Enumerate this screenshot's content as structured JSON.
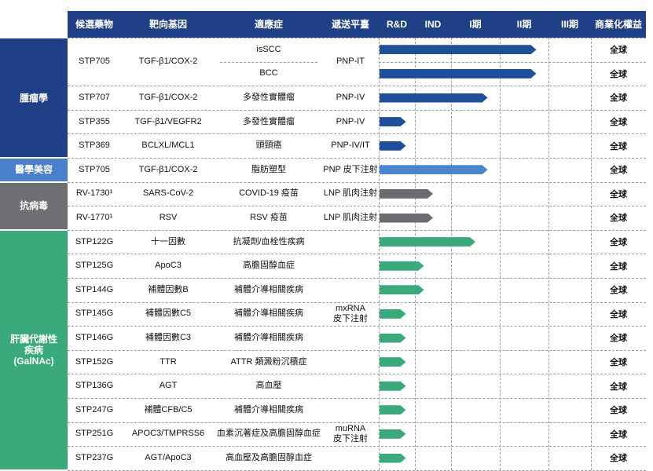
{
  "colors": {
    "header_bg": "#1f3f86",
    "oncology": "#1f3f86",
    "aesthetic": "#4a7fc9",
    "antiviral": "#6e6f72",
    "liver": "#3aaa7c",
    "bar_oncology": "#1f4e9a",
    "bar_aesthetic": "#4a85cf",
    "bar_antiviral": "#6b6c6f",
    "bar_liver": "#3aaa7c"
  },
  "headers": {
    "candidate": "候選藥物",
    "target": "靶向基因",
    "indication": "適應症",
    "platform": "遞送平臺",
    "phases": [
      "R&D",
      "IND",
      "I期",
      "II期",
      "III期"
    ],
    "rights": "商業化權益"
  },
  "categories": [
    {
      "key": "oncology",
      "label": "腫瘤學"
    },
    {
      "key": "aesthetic",
      "label": "醫學美容"
    },
    {
      "key": "antiviral",
      "label": "抗病毒"
    },
    {
      "key": "liver",
      "label": "肝臟代謝性\n疾病\n(GalNAc)"
    }
  ],
  "drugs": [
    {
      "candidate": "STP705",
      "target": "TGF-β1/COX-2",
      "indications": [
        "isSCC",
        "BCC"
      ],
      "platform": "PNP-IT"
    },
    {
      "candidate": "STP707",
      "target": "TGF-β1/COX-2",
      "indications": [
        "多發性實體瘤"
      ],
      "platform": "PNP-IV"
    },
    {
      "candidate": "STP355",
      "target": "TGF-β1/VEGFR2",
      "indications": [
        "多發性實體瘤"
      ],
      "platform": "PNP-IV"
    },
    {
      "candidate": "STP369",
      "target": "BCLXL/MCL1",
      "indications": [
        "頭頸癌"
      ],
      "platform": "PNP-IV/IT"
    },
    {
      "candidate": "STP705",
      "target": "TGF-β1/COX-2",
      "indications": [
        "脂肪塑型"
      ],
      "platform": "PNP 皮下注射"
    },
    {
      "candidate": "RV-1730¹",
      "target": "SARS-CoV-2",
      "indications": [
        "COVID-19 疫苗"
      ],
      "platform": "LNP 肌肉注射"
    },
    {
      "candidate": "RV-1770¹",
      "target": "RSV",
      "indications": [
        "RSV 疫苗"
      ],
      "platform": "LNP 肌肉注射"
    },
    {
      "candidate": "STP122G",
      "target": "十一因數",
      "indications": [
        "抗凝劑/血栓性疾病"
      ]
    },
    {
      "candidate": "STP125G",
      "target": "ApoC3",
      "indications": [
        "高膽固醇血症"
      ]
    },
    {
      "candidate": "STP144G",
      "target": "補體因數B",
      "indications": [
        "補體介導相關疾病"
      ]
    },
    {
      "candidate": "STP145G",
      "target": "補體因數C5",
      "indications": [
        "補體介導相關疾病"
      ]
    },
    {
      "candidate": "STP146G",
      "target": "補體因數C3",
      "indications": [
        "補體介導相關疾病"
      ]
    },
    {
      "candidate": "STP152G",
      "target": "TTR",
      "indications": [
        "ATTR 類澱粉沉積症"
      ]
    },
    {
      "candidate": "STP136G",
      "target": "AGT",
      "indications": [
        "高血壓"
      ]
    },
    {
      "candidate": "STP247G",
      "target": "補體CFB/C5",
      "indications": [
        "補體介導相關疾病"
      ]
    },
    {
      "candidate": "STP251G",
      "target": "APOC3/TMPRSS6",
      "indications": [
        "血素沉著症及高膽固醇血症"
      ]
    },
    {
      "candidate": "STP237G",
      "target": "AGT/ApoC3",
      "indications": [
        "高血壓及高膽固醇血症"
      ]
    }
  ],
  "platform_groups": [
    {
      "label": "mxRNA\n皮下注射"
    },
    {
      "label": "muRNA\n皮下注射"
    }
  ],
  "rights_label": "全球",
  "chart_data": {
    "type": "bar",
    "orientation": "horizontal",
    "phases": [
      "R&D",
      "IND",
      "I期",
      "II期",
      "III期"
    ],
    "phase_unit_note": "",
    "rows": [
      {
        "candidate": "STP705",
        "indication": "isSCC",
        "category": "oncology",
        "progress": 3.75
      },
      {
        "candidate": "STP705",
        "indication": "BCC",
        "category": "oncology",
        "progress": 3.75
      },
      {
        "candidate": "STP707",
        "indication": "多發性實體瘤",
        "category": "oncology",
        "progress": 2.75
      },
      {
        "candidate": "STP355",
        "indication": "多發性實體瘤",
        "category": "oncology",
        "progress": 0.75
      },
      {
        "candidate": "STP369",
        "indication": "頭頸癌",
        "category": "oncology",
        "progress": 0.75
      },
      {
        "candidate": "STP705",
        "indication": "脂肪塑型",
        "category": "aesthetic",
        "progress": 2.75
      },
      {
        "candidate": "RV-1730¹",
        "indication": "COVID-19 疫苗",
        "category": "antiviral",
        "progress": 1.5
      },
      {
        "candidate": "RV-1770¹",
        "indication": "RSV 疫苗",
        "category": "antiviral",
        "progress": 1.5
      },
      {
        "candidate": "STP122G",
        "indication": "抗凝劑/血栓性疾病",
        "category": "liver",
        "progress": 2.5
      },
      {
        "candidate": "STP125G",
        "indication": "高膽固醇血症",
        "category": "liver",
        "progress": 1.25
      },
      {
        "candidate": "STP144G",
        "indication": "補體介導相關疾病",
        "category": "liver",
        "progress": 1.25
      },
      {
        "candidate": "STP145G",
        "indication": "補體介導相關疾病",
        "category": "liver",
        "progress": 0.75
      },
      {
        "candidate": "STP146G",
        "indication": "補體介導相關疾病",
        "category": "liver",
        "progress": 0.75
      },
      {
        "candidate": "STP152G",
        "indication": "ATTR 類澱粉沉積症",
        "category": "liver",
        "progress": 0.75
      },
      {
        "candidate": "STP136G",
        "indication": "高血壓",
        "category": "liver",
        "progress": 0.75
      },
      {
        "candidate": "STP247G",
        "indication": "補體介導相關疾病",
        "category": "liver",
        "progress": 0.75
      },
      {
        "candidate": "STP251G",
        "indication": "血素沉著症及高膽固醇血症",
        "category": "liver",
        "progress": 0.75
      },
      {
        "candidate": "STP237G",
        "indication": "高血壓及高膽固醇血症",
        "category": "liver",
        "progress": 0.75
      }
    ]
  }
}
